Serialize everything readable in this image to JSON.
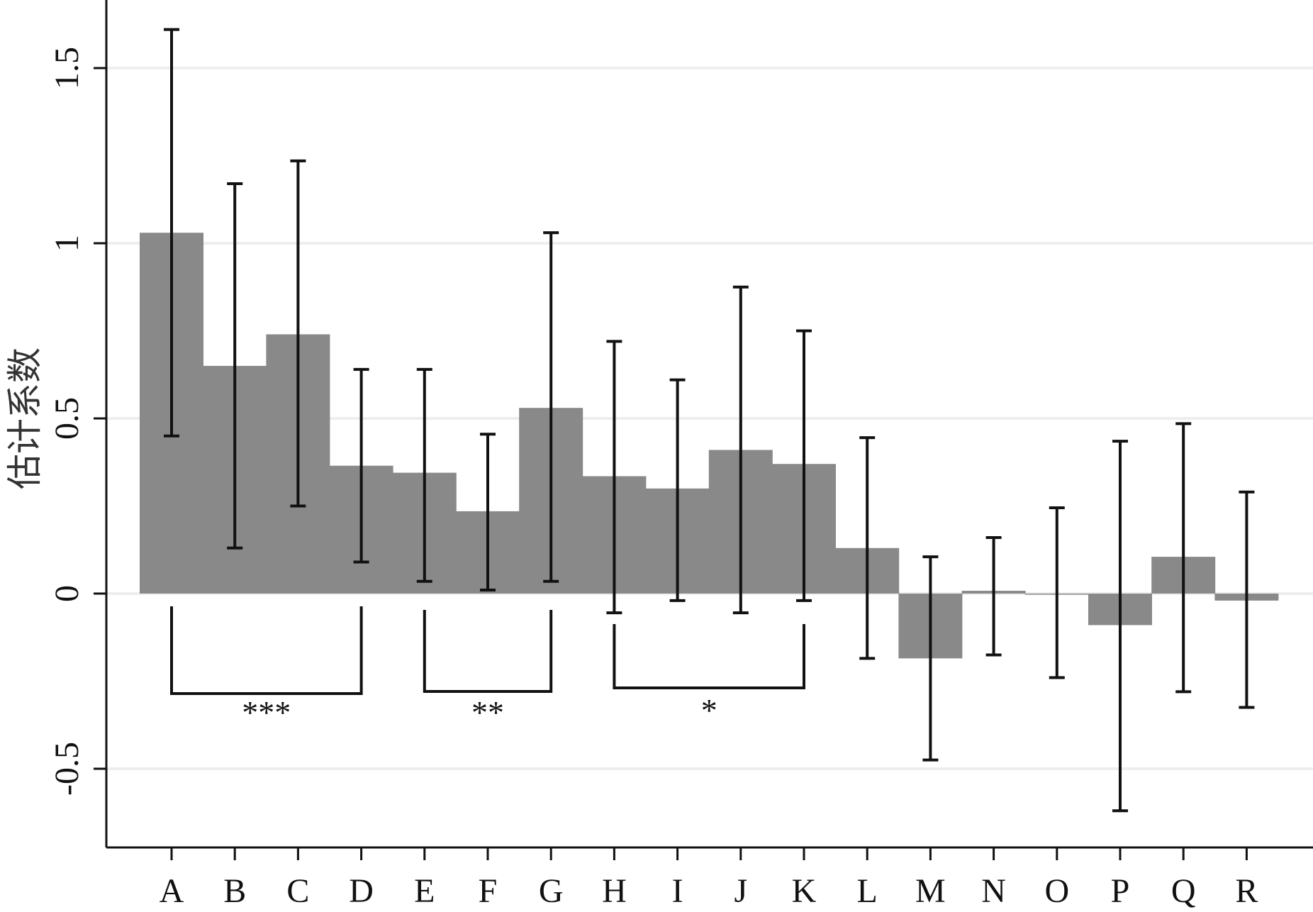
{
  "chart_data": {
    "type": "bar",
    "categories": [
      "A",
      "B",
      "C",
      "D",
      "E",
      "F",
      "G",
      "H",
      "I",
      "J",
      "K",
      "L",
      "M",
      "N",
      "O",
      "P",
      "Q",
      "R"
    ],
    "values": [
      1.03,
      0.65,
      0.74,
      0.365,
      0.345,
      0.235,
      0.53,
      0.335,
      0.3,
      0.41,
      0.37,
      0.13,
      -0.185,
      0.008,
      0.0,
      -0.09,
      0.105,
      -0.02
    ],
    "ci_lower": [
      0.45,
      0.13,
      0.25,
      0.09,
      0.035,
      0.01,
      0.035,
      -0.055,
      -0.02,
      -0.055,
      -0.02,
      -0.185,
      -0.475,
      -0.175,
      -0.24,
      -0.62,
      -0.28,
      -0.325
    ],
    "ci_upper": [
      1.61,
      1.17,
      1.235,
      0.64,
      0.64,
      0.455,
      1.03,
      0.72,
      0.61,
      0.875,
      0.75,
      0.445,
      0.105,
      0.16,
      0.245,
      0.435,
      0.485,
      0.29
    ],
    "ylabel": "估计系数",
    "xlabel": "",
    "ylim": [
      -0.65,
      1.7
    ],
    "yticks": [
      -0.5,
      0,
      0.5,
      1,
      1.5
    ],
    "ytick_labels": [
      "-0.5",
      "0",
      "0.5",
      "1",
      "1.5"
    ],
    "grid": true,
    "significance_brackets": [
      {
        "from": "A",
        "to": "D",
        "label": "***"
      },
      {
        "from": "E",
        "to": "G",
        "label": "**"
      },
      {
        "from": "H",
        "to": "K",
        "label": "*"
      }
    ],
    "colors": {
      "bar": "#898989",
      "error_bar": "#111111",
      "grid": "#eeeeee"
    }
  }
}
